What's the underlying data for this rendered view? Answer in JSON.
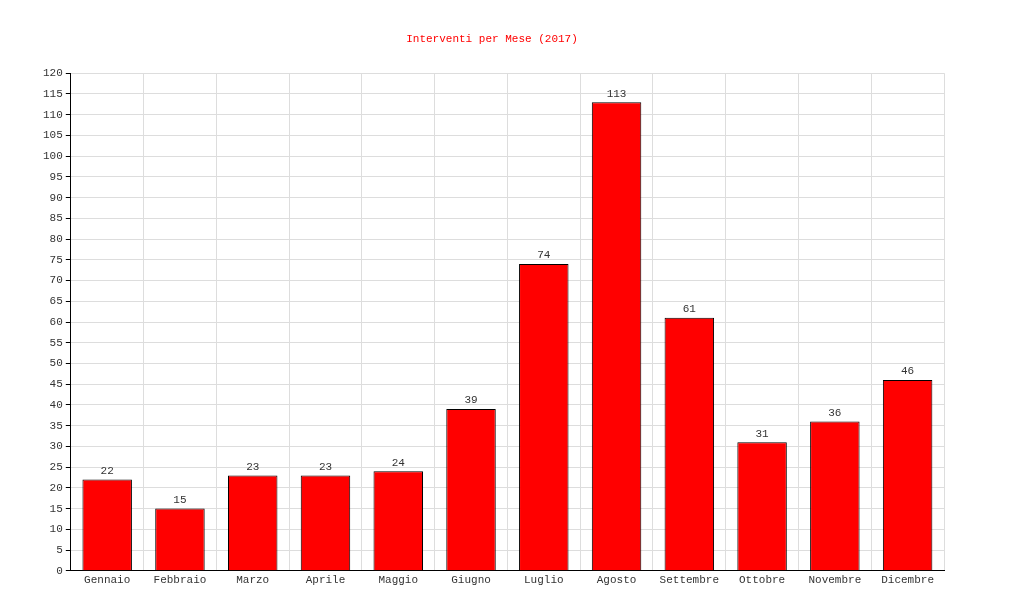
{
  "chart_data": {
    "type": "bar",
    "title": "Interventi per Mese (2017)",
    "categories": [
      "Gennaio",
      "Febbraio",
      "Marzo",
      "Aprile",
      "Maggio",
      "Giugno",
      "Luglio",
      "Agosto",
      "Settembre",
      "Ottobre",
      "Novembre",
      "Dicembre"
    ],
    "values": [
      22,
      15,
      23,
      23,
      24,
      39,
      74,
      113,
      61,
      31,
      36,
      46
    ],
    "color": "#ff0000",
    "ylim": [
      0,
      120
    ],
    "yticks": [
      0,
      5,
      10,
      15,
      20,
      25,
      30,
      35,
      40,
      45,
      50,
      55,
      60,
      65,
      70,
      75,
      80,
      85,
      90,
      95,
      100,
      105,
      110,
      115,
      120
    ],
    "grid": true,
    "data_labels": true,
    "legend": false
  }
}
